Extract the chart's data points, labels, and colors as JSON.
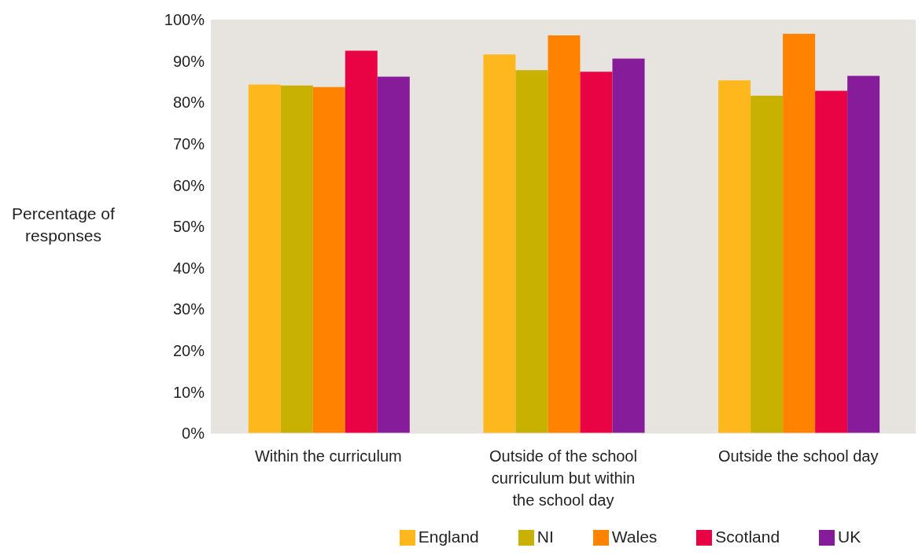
{
  "chart_data": {
    "type": "bar",
    "ylabel": "Percentage of responses",
    "categories": [
      "Within the curriculum",
      "Outside of the school curriculum but within the school day",
      "Outside the school day"
    ],
    "series": [
      {
        "name": "England",
        "color": "#ffb71e",
        "values": [
          84.3,
          91.6,
          85.3
        ]
      },
      {
        "name": "NI",
        "color": "#c8b100",
        "values": [
          84.1,
          87.8,
          81.6
        ]
      },
      {
        "name": "Wales",
        "color": "#ff8300",
        "values": [
          83.7,
          96.2,
          96.6
        ]
      },
      {
        "name": "Scotland",
        "color": "#e90345",
        "values": [
          92.5,
          87.4,
          82.8
        ]
      },
      {
        "name": "UK",
        "color": "#871c9b",
        "values": [
          86.2,
          90.6,
          86.4
        ]
      }
    ],
    "ylim": [
      0,
      100
    ],
    "yticks": [
      {
        "value": 0,
        "label": "0%"
      },
      {
        "value": 10,
        "label": "10%"
      },
      {
        "value": 20,
        "label": "20%"
      },
      {
        "value": 30,
        "label": "30%"
      },
      {
        "value": 40,
        "label": "40%"
      },
      {
        "value": 50,
        "label": "50%"
      },
      {
        "value": 60,
        "label": "60%"
      },
      {
        "value": 70,
        "label": "70%"
      },
      {
        "value": 80,
        "label": "80%"
      },
      {
        "value": 90,
        "label": "90%"
      },
      {
        "value": 100,
        "label": "100%"
      }
    ],
    "grid": false,
    "legend": "bottom"
  }
}
